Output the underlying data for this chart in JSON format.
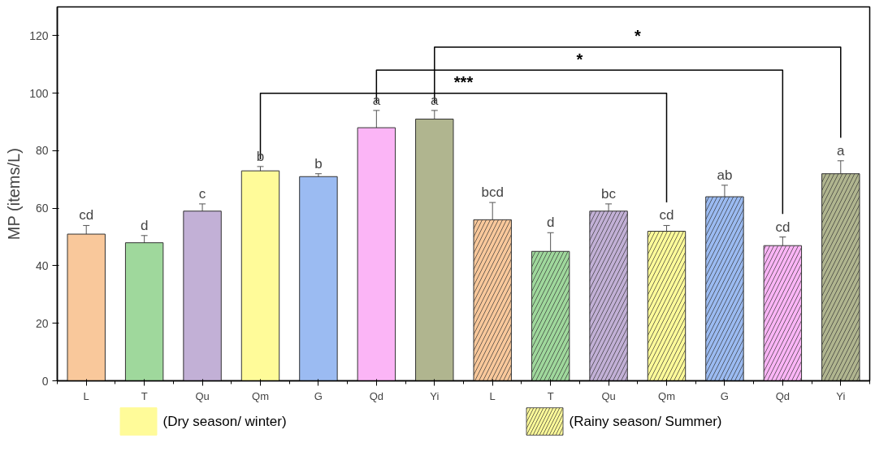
{
  "chart_data": {
    "type": "bar",
    "ylabel": "MP (items/L)",
    "categories": [
      "L",
      "T",
      "Qu",
      "Qm",
      "G",
      "Qd",
      "Yi",
      "L",
      "T",
      "Qu",
      "Qm",
      "G",
      "Qd",
      "Yi"
    ],
    "series": [
      {
        "name": "(Dry season/ winter)",
        "color": "#fffb99",
        "colors": [
          "#f9c89b",
          "#9fd89c",
          "#c2b0d6",
          "#fffb99",
          "#9bbbf2",
          "#fbb5f6",
          "#b0b58f",
          null,
          null,
          null,
          null,
          null,
          null,
          null
        ],
        "values": [
          51,
          48,
          59,
          73,
          71,
          88,
          91,
          null,
          null,
          null,
          null,
          null,
          null,
          null
        ],
        "errors": [
          3,
          2.5,
          2.5,
          1.5,
          1,
          6,
          3,
          null,
          null,
          null,
          null,
          null,
          null,
          null
        ],
        "value_labels": [
          "cd",
          "d",
          "c",
          "b",
          "b",
          "a",
          "a",
          null,
          null,
          null,
          null,
          null,
          null,
          null
        ]
      },
      {
        "name": "(Rainy season/ Summer)",
        "color": "#fffb99",
        "colors": [
          null,
          null,
          null,
          null,
          null,
          null,
          null,
          "#f9c89b",
          "#9fd89c",
          "#c2b0d6",
          "#fffb99",
          "#9bbbf2",
          "#fbb5f6",
          "#b0b58f"
        ],
        "values": [
          null,
          null,
          null,
          null,
          null,
          null,
          null,
          56,
          45,
          59,
          52,
          64,
          47,
          72
        ],
        "errors": [
          null,
          null,
          null,
          null,
          null,
          null,
          null,
          6,
          6.5,
          2.5,
          2,
          4,
          3,
          4.5
        ],
        "value_labels": [
          null,
          null,
          null,
          null,
          null,
          null,
          null,
          "bcd",
          "d",
          "bc",
          "cd",
          "ab",
          "cd",
          "a"
        ]
      }
    ],
    "annotations": [
      "***",
      "*",
      "*"
    ],
    "ylim": [
      0,
      130
    ],
    "yticks": [
      0,
      20,
      40,
      60,
      80,
      100,
      120
    ],
    "legend": "bottom",
    "grid": false
  }
}
